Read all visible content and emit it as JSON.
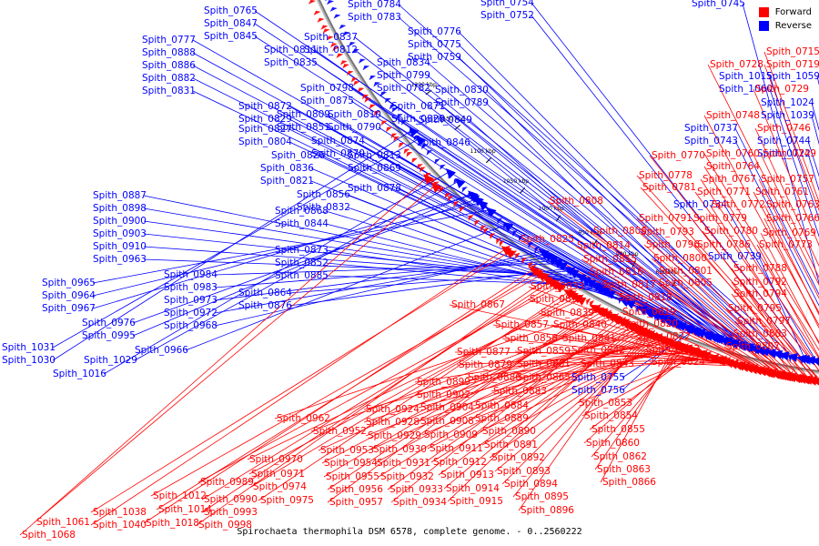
{
  "caption": "Spirochaeta thermophila DSM 6578, complete genome. - 0..2560222",
  "legend": [
    {
      "label": "Forward",
      "color": "#ff0000"
    },
    {
      "label": "Reverse",
      "color": "#0000ff"
    }
  ],
  "colors": {
    "forward": "#ff0000",
    "reverse": "#0000ff",
    "backbone": "#777777"
  },
  "scale_labels": [
    "850 kbp",
    "900 kbp",
    "950 kbp",
    "1000 kbp",
    "1050 kbp",
    "1100 kbp",
    "1150 kbp",
    "1200 kbp"
  ],
  "reverse_genes": [
    "Spith_0745",
    "Spith_0754",
    "Spith_0752",
    "Spith_0784",
    "Spith_0783",
    "Spith_0776",
    "Spith_0775",
    "Spith_0759",
    "Spith_0765",
    "Spith_0847",
    "Spith_0845",
    "Spith_0837",
    "Spith_0812",
    "Spith_0811",
    "Spith_0835",
    "Spith_0834",
    "Spith_0799",
    "Spith_0782",
    "Spith_0777",
    "Spith_0888",
    "Spith_0886",
    "Spith_0882",
    "Spith_0831",
    "Spith_0798",
    "Spith_0875",
    "Spith_0830",
    "Spith_0789",
    "Spith_0872",
    "Spith_0829",
    "Spith_0810",
    "Spith_0790",
    "Spith_0871",
    "Spith_0828",
    "Spith_0809",
    "Spith_0851",
    "Spith_0849",
    "Spith_0827",
    "Spith_0804",
    "Spith_0874",
    "Spith_0870",
    "Spith_0846",
    "Spith_0826",
    "Spith_0813",
    "Spith_0869",
    "Spith_0836",
    "Spith_0821",
    "Spith_0878",
    "Spith_0856",
    "Spith_0832",
    "Spith_0868",
    "Spith_0844",
    "Spith_0873",
    "Spith_0852",
    "Spith_0885",
    "Spith_0864",
    "Spith_0876",
    "Spith_0887",
    "Spith_0898",
    "Spith_0900",
    "Spith_0903",
    "Spith_0910",
    "Spith_0963",
    "Spith_0984",
    "Spith_0983",
    "Spith_0973",
    "Spith_0972",
    "Spith_0968",
    "Spith_0966",
    "Spith_0965",
    "Spith_0964",
    "Spith_0967",
    "Spith_0976",
    "Spith_0995",
    "Spith_1031",
    "Spith_1030",
    "Spith_1029",
    "Spith_1016",
    "Spith_1015",
    "Spith_1060",
    "Spith_1059",
    "Spith_1024",
    "Spith_1039",
    "Spith_0737",
    "Spith_0743",
    "Spith_0744",
    "Spith_0722",
    "Spith_0734",
    "Spith_0739",
    "Spith_0755",
    "Spith_0756",
    "Spith_0747",
    "Spith_0753",
    "Spith_0785",
    "Spith_0787",
    "Spith_0848",
    "Spith_0850"
  ],
  "forward_genes": [
    "Spith_0715",
    "Spith_0728",
    "Spith_0719",
    "Spith_0729",
    "Spith_0748",
    "Spith_0746",
    "Spith_0760",
    "Spith_0749",
    "Spith_0770",
    "Spith_0764",
    "Spith_0767",
    "Spith_0757",
    "Spith_0778",
    "Spith_0771",
    "Spith_0761",
    "Spith_0781",
    "Spith_0772",
    "Spith_0763",
    "Spith_0808",
    "Spith_0791",
    "Spith_0779",
    "Spith_0766",
    "Spith_0806",
    "Spith_0793",
    "Spith_0780",
    "Spith_0769",
    "Spith_0825",
    "Spith_0796",
    "Spith_0786",
    "Spith_0773",
    "Spith_0814",
    "Spith_0800",
    "Spith_0815",
    "Spith_0801",
    "Spith_0788",
    "Spith_0816",
    "Spith_0805",
    "Spith_0792",
    "Spith_0817",
    "Spith_0794",
    "Spith_0833",
    "Spith_0818",
    "Spith_0838",
    "Spith_0819",
    "Spith_0795",
    "Spith_0839",
    "Spith_0797",
    "Spith_0867",
    "Spith_0840",
    "Spith_0820",
    "Spith_0857",
    "Spith_0803",
    "Spith_0858",
    "Spith_0841",
    "Spith_0822",
    "Spith_0807",
    "Spith_0842",
    "Spith_0823",
    "Spith_0877",
    "Spith_0859",
    "Spith_0843",
    "Spith_0824",
    "Spith_0879",
    "Spith_0861",
    "Spith_0880",
    "Spith_0865",
    "Spith_0899",
    "Spith_0883",
    "Spith_0902",
    "Spith_0853",
    "Spith_0884",
    "Spith_0924",
    "Spith_0904",
    "Spith_0854",
    "Spith_0962",
    "Spith_0928",
    "Spith_0908",
    "Spith_0889",
    "Spith_0855",
    "Spith_0952",
    "Spith_0929",
    "Spith_0909",
    "Spith_0890",
    "Spith_0930",
    "Spith_0911",
    "Spith_0891",
    "Spith_0860",
    "Spith_0953",
    "Spith_0912",
    "Spith_0892",
    "Spith_0862",
    "Spith_0970",
    "Spith_0954",
    "Spith_0931",
    "Spith_0893",
    "Spith_0863",
    "Spith_0971",
    "Spith_0955",
    "Spith_0932",
    "Spith_0913",
    "Spith_0894",
    "Spith_0866",
    "Spith_0989",
    "Spith_0974",
    "Spith_0956",
    "Spith_0933",
    "Spith_0914",
    "Spith_0895",
    "Spith_1012",
    "Spith_0990",
    "Spith_0975",
    "Spith_0957",
    "Spith_0934",
    "Spith_0915",
    "Spith_0896",
    "Spith_1014",
    "Spith_0993",
    "Spith_1038",
    "Spith_1018",
    "Spith_0998",
    "Spith_1061",
    "Spith_1040",
    "Spith_1068"
  ]
}
